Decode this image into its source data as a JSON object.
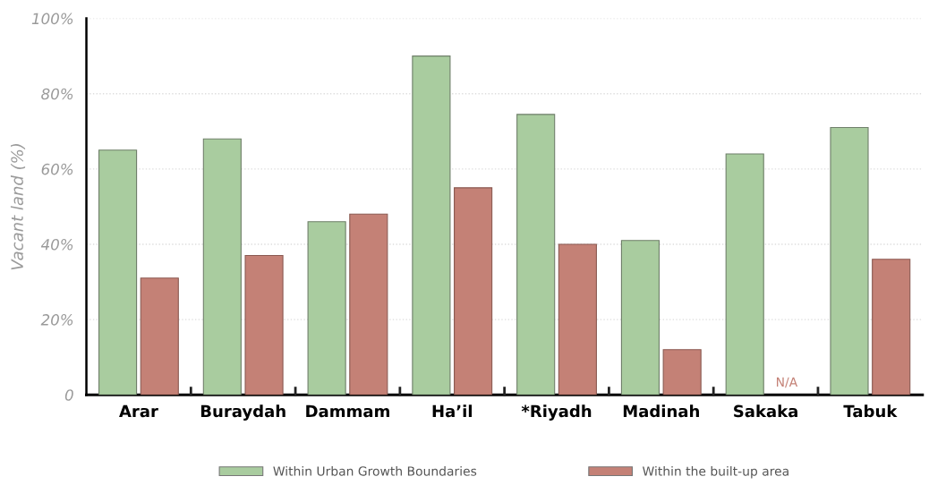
{
  "chart_data": {
    "type": "bar",
    "ylabel": "Vacant land (%)",
    "categories": [
      "Arar",
      "Buraydah",
      "Dammam",
      "Ha’il",
      "*Riyadh",
      "Madinah",
      "Sakaka",
      "Tabuk"
    ],
    "series": [
      {
        "name": "Within Urban Growth Boundaries",
        "color": "#a9cc9f",
        "values": [
          65,
          68,
          46,
          90,
          74.5,
          41,
          64,
          71
        ]
      },
      {
        "name": "Within the built-up area",
        "color": "#c48176",
        "values": [
          31,
          37,
          48,
          55,
          40,
          12,
          null,
          36
        ]
      }
    ],
    "ylim": [
      0,
      100
    ],
    "yticks": [
      0,
      {
        "value": 20,
        "label": "20%"
      },
      {
        "value": 40,
        "label": "40%"
      },
      {
        "value": 60,
        "label": "60%"
      },
      {
        "value": 80,
        "label": "80%"
      },
      {
        "value": 100,
        "label": "100%"
      }
    ],
    "grid": "y",
    "legend": "bottom",
    "annotations": [
      {
        "text": "N/A",
        "x": "Sakaka",
        "y": 0
      }
    ]
  }
}
